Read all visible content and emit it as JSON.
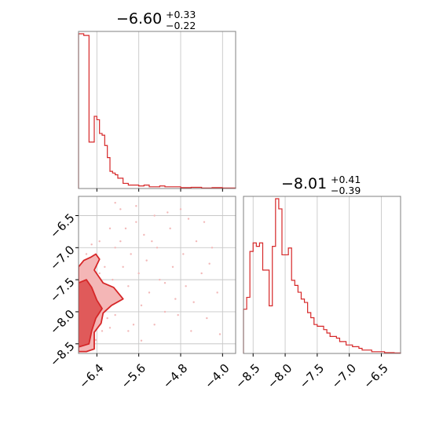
{
  "colors": {
    "accent": "#d62728",
    "contour_fill_dark": "#e05a5a",
    "contour_fill_light": "#f4b6b6",
    "points": "#f2b8b8",
    "grid": "#c8c8c8",
    "frame": "#808080"
  },
  "chart_data": [
    {
      "type": "histogram",
      "panel": "top-left",
      "title": {
        "main": "−6.60",
        "sup": "+0.33",
        "sub": "−0.22"
      },
      "xlim": [
        -6.75,
        -3.75
      ],
      "xticks": [
        -6.4,
        -5.6,
        -4.8,
        -4.0
      ],
      "grid": true,
      "bin_edges": [
        -6.75,
        -6.65,
        -6.55,
        -6.45,
        -6.4,
        -6.35,
        -6.3,
        -6.25,
        -6.2,
        -6.15,
        -6.1,
        -6.05,
        -6.0,
        -5.9,
        -5.8,
        -5.7,
        -5.6,
        -5.5,
        -5.4,
        -5.3,
        -5.2,
        -5.1,
        -5.0,
        -4.8,
        -4.6,
        -4.4,
        -4.2,
        -4.0,
        -3.75
      ],
      "counts": [
        90,
        89,
        27,
        42,
        40,
        32,
        31,
        25,
        18,
        10,
        9,
        8,
        6,
        3,
        2,
        2,
        1.5,
        2,
        1,
        1,
        1.5,
        1,
        1,
        0.5,
        0.7,
        0.3,
        0.5,
        0.3
      ]
    },
    {
      "type": "histogram",
      "panel": "bottom-right",
      "title": {
        "main": "−8.01",
        "sup": "+0.41",
        "sub": "−0.39"
      },
      "xlim": [
        -8.65,
        -6.2
      ],
      "xticks": [
        -8.5,
        -8.0,
        -7.5,
        -7.0,
        -6.5
      ],
      "grid": true,
      "bin_edges": [
        -8.65,
        -8.6,
        -8.55,
        -8.5,
        -8.45,
        -8.4,
        -8.35,
        -8.3,
        -8.25,
        -8.2,
        -8.15,
        -8.1,
        -8.05,
        -8.0,
        -7.95,
        -7.9,
        -7.85,
        -7.8,
        -7.75,
        -7.7,
        -7.65,
        -7.6,
        -7.55,
        -7.5,
        -7.45,
        -7.4,
        -7.35,
        -7.3,
        -7.25,
        -7.2,
        -7.15,
        -7.1,
        -7.05,
        -7.0,
        -6.95,
        -6.9,
        -6.85,
        -6.8,
        -6.75,
        -6.7,
        -6.65,
        -6.6,
        -6.55,
        -6.5,
        -6.45,
        -6.4,
        -6.35,
        -6.3,
        -6.25,
        -6.2
      ],
      "counts": [
        26,
        33,
        60,
        65,
        63,
        65,
        49,
        49,
        28,
        63,
        91,
        85,
        58,
        58,
        62,
        43,
        40,
        36,
        32,
        30,
        24,
        21,
        17,
        16,
        16,
        14,
        12,
        10,
        10,
        9,
        7,
        7,
        5,
        5,
        4,
        4,
        3,
        2,
        2,
        2,
        1,
        1,
        1,
        1,
        0.5,
        0.5,
        0.5,
        0.3,
        0.3
      ]
    },
    {
      "type": "scatter",
      "panel": "bottom-left",
      "overlay": "filled density contours",
      "xlim": [
        -6.75,
        -3.75
      ],
      "ylim": [
        -8.65,
        -6.2
      ],
      "xticks": [
        -6.4,
        -5.6,
        -4.8,
        -4.0
      ],
      "yticks": [
        -6.5,
        -7.0,
        -7.5,
        -8.0,
        -8.5
      ],
      "grid": true,
      "contour_levels": [
        {
          "name": "outer",
          "polygon": [
            [
              -6.75,
              -8.62
            ],
            [
              -6.75,
              -7.3
            ],
            [
              -6.65,
              -7.2
            ],
            [
              -6.52,
              -7.15
            ],
            [
              -6.42,
              -7.1
            ],
            [
              -6.35,
              -7.18
            ],
            [
              -6.45,
              -7.35
            ],
            [
              -6.28,
              -7.55
            ],
            [
              -6.08,
              -7.62
            ],
            [
              -5.9,
              -7.8
            ],
            [
              -6.12,
              -7.9
            ],
            [
              -6.28,
              -8.02
            ],
            [
              -6.32,
              -8.18
            ],
            [
              -6.45,
              -8.32
            ],
            [
              -6.45,
              -8.58
            ],
            [
              -6.6,
              -8.62
            ]
          ]
        },
        {
          "name": "inner",
          "polygon": [
            [
              -6.75,
              -8.55
            ],
            [
              -6.75,
              -7.55
            ],
            [
              -6.6,
              -7.5
            ],
            [
              -6.5,
              -7.62
            ],
            [
              -6.4,
              -7.82
            ],
            [
              -6.3,
              -7.95
            ],
            [
              -6.42,
              -8.1
            ],
            [
              -6.5,
              -8.3
            ],
            [
              -6.55,
              -8.5
            ]
          ]
        }
      ],
      "points": [
        [
          -6.7,
          -8.4
        ],
        [
          -6.65,
          -8.1
        ],
        [
          -6.6,
          -7.9
        ],
        [
          -6.55,
          -8.3
        ],
        [
          -6.5,
          -7.7
        ],
        [
          -6.45,
          -8.0
        ],
        [
          -6.4,
          -7.6
        ],
        [
          -6.35,
          -7.4
        ],
        [
          -6.3,
          -7.9
        ],
        [
          -6.25,
          -7.3
        ],
        [
          -6.2,
          -8.1
        ],
        [
          -6.1,
          -7.5
        ],
        [
          -6.05,
          -7.0
        ],
        [
          -6.0,
          -7.8
        ],
        [
          -5.95,
          -6.9
        ],
        [
          -5.9,
          -7.3
        ],
        [
          -5.85,
          -6.7
        ],
        [
          -5.8,
          -7.6
        ],
        [
          -5.75,
          -7.1
        ],
        [
          -5.7,
          -8.2
        ],
        [
          -5.65,
          -6.6
        ],
        [
          -5.6,
          -7.4
        ],
        [
          -5.55,
          -7.9
        ],
        [
          -5.5,
          -6.8
        ],
        [
          -5.45,
          -7.2
        ],
        [
          -5.4,
          -7.7
        ],
        [
          -5.3,
          -6.5
        ],
        [
          -5.25,
          -7.0
        ],
        [
          -5.2,
          -7.5
        ],
        [
          -5.1,
          -8.0
        ],
        [
          -5.0,
          -6.7
        ],
        [
          -4.95,
          -7.3
        ],
        [
          -4.9,
          -7.8
        ],
        [
          -4.8,
          -6.4
        ],
        [
          -4.75,
          -7.1
        ],
        [
          -4.7,
          -7.6
        ],
        [
          -4.6,
          -8.3
        ],
        [
          -4.5,
          -6.9
        ],
        [
          -4.4,
          -7.4
        ],
        [
          -4.3,
          -8.1
        ],
        [
          -4.2,
          -7.0
        ],
        [
          -4.1,
          -7.7
        ],
        [
          -6.15,
          -6.7
        ],
        [
          -6.05,
          -6.3
        ],
        [
          -5.95,
          -6.4
        ],
        [
          -6.35,
          -6.9
        ],
        [
          -6.5,
          -6.95
        ],
        [
          -6.6,
          -7.1
        ],
        [
          -6.68,
          -7.6
        ],
        [
          -6.62,
          -8.55
        ],
        [
          -6.48,
          -8.5
        ],
        [
          -6.3,
          -8.3
        ],
        [
          -6.15,
          -8.25
        ],
        [
          -6.05,
          -8.05
        ],
        [
          -5.8,
          -8.3
        ],
        [
          -5.55,
          -8.45
        ],
        [
          -5.3,
          -8.2
        ],
        [
          -5.1,
          -7.55
        ],
        [
          -4.85,
          -8.05
        ],
        [
          -4.55,
          -7.85
        ],
        [
          -4.25,
          -7.25
        ],
        [
          -4.05,
          -8.35
        ],
        [
          -5.65,
          -6.35
        ],
        [
          -5.35,
          -6.9
        ],
        [
          -5.05,
          -6.45
        ],
        [
          -4.65,
          -6.55
        ],
        [
          -4.35,
          -6.6
        ],
        [
          -6.25,
          -7.65
        ],
        [
          -6.38,
          -7.45
        ],
        [
          -6.58,
          -7.25
        ],
        [
          -6.42,
          -8.44
        ]
      ]
    }
  ]
}
